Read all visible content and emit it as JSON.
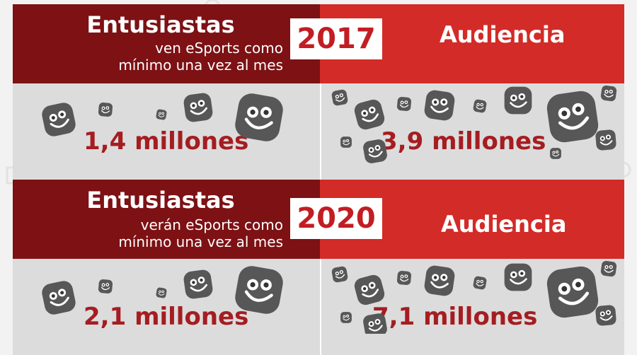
{
  "sections": [
    {
      "year": "2017",
      "enthusiasts_title": "Entusiastas",
      "enthusiasts_sub1": "ven eSports como",
      "enthusiasts_sub2": "mínimo una vez al mes",
      "audience_title": "Audiencia",
      "enthusiasts_value": "1,4 millones",
      "audience_value": "3,9 millones"
    },
    {
      "year": "2020",
      "enthusiasts_title": "Entusiastas",
      "enthusiasts_sub1": "verán eSports como",
      "enthusiasts_sub2": "mínimo una vez al mes",
      "audience_title": "Audiencia",
      "enthusiasts_value": "2,1 millones",
      "audience_value": "7,1 millones"
    }
  ],
  "colors": {
    "dark_red": "#7d1114",
    "red": "#d32b27",
    "stat_red": "#a51d21",
    "face": "#575757"
  },
  "icons": [
    "smiley-face-icon",
    "dollar-icon",
    "bone-icon",
    "gamepad-icon",
    "cup-icon",
    "ball-icon"
  ]
}
